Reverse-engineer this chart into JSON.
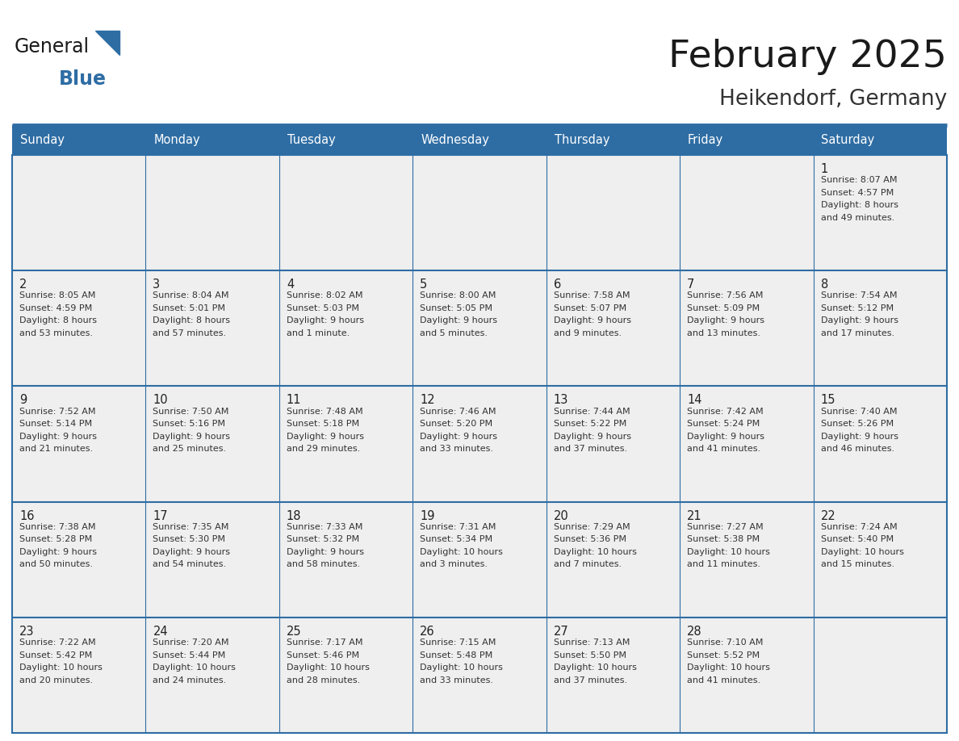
{
  "title": "February 2025",
  "subtitle": "Heikendorf, Germany",
  "header_bg": "#2E6DA4",
  "header_text_color": "#FFFFFF",
  "cell_bg": "#EFEFEF",
  "border_color": "#2E6DA4",
  "day_headers": [
    "Sunday",
    "Monday",
    "Tuesday",
    "Wednesday",
    "Thursday",
    "Friday",
    "Saturday"
  ],
  "days_data": [
    {
      "day": 1,
      "col": 6,
      "row": 0,
      "sunrise": "8:07 AM",
      "sunset": "4:57 PM",
      "daylight_line1": "Daylight: 8 hours",
      "daylight_line2": "and 49 minutes."
    },
    {
      "day": 2,
      "col": 0,
      "row": 1,
      "sunrise": "8:05 AM",
      "sunset": "4:59 PM",
      "daylight_line1": "Daylight: 8 hours",
      "daylight_line2": "and 53 minutes."
    },
    {
      "day": 3,
      "col": 1,
      "row": 1,
      "sunrise": "8:04 AM",
      "sunset": "5:01 PM",
      "daylight_line1": "Daylight: 8 hours",
      "daylight_line2": "and 57 minutes."
    },
    {
      "day": 4,
      "col": 2,
      "row": 1,
      "sunrise": "8:02 AM",
      "sunset": "5:03 PM",
      "daylight_line1": "Daylight: 9 hours",
      "daylight_line2": "and 1 minute."
    },
    {
      "day": 5,
      "col": 3,
      "row": 1,
      "sunrise": "8:00 AM",
      "sunset": "5:05 PM",
      "daylight_line1": "Daylight: 9 hours",
      "daylight_line2": "and 5 minutes."
    },
    {
      "day": 6,
      "col": 4,
      "row": 1,
      "sunrise": "7:58 AM",
      "sunset": "5:07 PM",
      "daylight_line1": "Daylight: 9 hours",
      "daylight_line2": "and 9 minutes."
    },
    {
      "day": 7,
      "col": 5,
      "row": 1,
      "sunrise": "7:56 AM",
      "sunset": "5:09 PM",
      "daylight_line1": "Daylight: 9 hours",
      "daylight_line2": "and 13 minutes."
    },
    {
      "day": 8,
      "col": 6,
      "row": 1,
      "sunrise": "7:54 AM",
      "sunset": "5:12 PM",
      "daylight_line1": "Daylight: 9 hours",
      "daylight_line2": "and 17 minutes."
    },
    {
      "day": 9,
      "col": 0,
      "row": 2,
      "sunrise": "7:52 AM",
      "sunset": "5:14 PM",
      "daylight_line1": "Daylight: 9 hours",
      "daylight_line2": "and 21 minutes."
    },
    {
      "day": 10,
      "col": 1,
      "row": 2,
      "sunrise": "7:50 AM",
      "sunset": "5:16 PM",
      "daylight_line1": "Daylight: 9 hours",
      "daylight_line2": "and 25 minutes."
    },
    {
      "day": 11,
      "col": 2,
      "row": 2,
      "sunrise": "7:48 AM",
      "sunset": "5:18 PM",
      "daylight_line1": "Daylight: 9 hours",
      "daylight_line2": "and 29 minutes."
    },
    {
      "day": 12,
      "col": 3,
      "row": 2,
      "sunrise": "7:46 AM",
      "sunset": "5:20 PM",
      "daylight_line1": "Daylight: 9 hours",
      "daylight_line2": "and 33 minutes."
    },
    {
      "day": 13,
      "col": 4,
      "row": 2,
      "sunrise": "7:44 AM",
      "sunset": "5:22 PM",
      "daylight_line1": "Daylight: 9 hours",
      "daylight_line2": "and 37 minutes."
    },
    {
      "day": 14,
      "col": 5,
      "row": 2,
      "sunrise": "7:42 AM",
      "sunset": "5:24 PM",
      "daylight_line1": "Daylight: 9 hours",
      "daylight_line2": "and 41 minutes."
    },
    {
      "day": 15,
      "col": 6,
      "row": 2,
      "sunrise": "7:40 AM",
      "sunset": "5:26 PM",
      "daylight_line1": "Daylight: 9 hours",
      "daylight_line2": "and 46 minutes."
    },
    {
      "day": 16,
      "col": 0,
      "row": 3,
      "sunrise": "7:38 AM",
      "sunset": "5:28 PM",
      "daylight_line1": "Daylight: 9 hours",
      "daylight_line2": "and 50 minutes."
    },
    {
      "day": 17,
      "col": 1,
      "row": 3,
      "sunrise": "7:35 AM",
      "sunset": "5:30 PM",
      "daylight_line1": "Daylight: 9 hours",
      "daylight_line2": "and 54 minutes."
    },
    {
      "day": 18,
      "col": 2,
      "row": 3,
      "sunrise": "7:33 AM",
      "sunset": "5:32 PM",
      "daylight_line1": "Daylight: 9 hours",
      "daylight_line2": "and 58 minutes."
    },
    {
      "day": 19,
      "col": 3,
      "row": 3,
      "sunrise": "7:31 AM",
      "sunset": "5:34 PM",
      "daylight_line1": "Daylight: 10 hours",
      "daylight_line2": "and 3 minutes."
    },
    {
      "day": 20,
      "col": 4,
      "row": 3,
      "sunrise": "7:29 AM",
      "sunset": "5:36 PM",
      "daylight_line1": "Daylight: 10 hours",
      "daylight_line2": "and 7 minutes."
    },
    {
      "day": 21,
      "col": 5,
      "row": 3,
      "sunrise": "7:27 AM",
      "sunset": "5:38 PM",
      "daylight_line1": "Daylight: 10 hours",
      "daylight_line2": "and 11 minutes."
    },
    {
      "day": 22,
      "col": 6,
      "row": 3,
      "sunrise": "7:24 AM",
      "sunset": "5:40 PM",
      "daylight_line1": "Daylight: 10 hours",
      "daylight_line2": "and 15 minutes."
    },
    {
      "day": 23,
      "col": 0,
      "row": 4,
      "sunrise": "7:22 AM",
      "sunset": "5:42 PM",
      "daylight_line1": "Daylight: 10 hours",
      "daylight_line2": "and 20 minutes."
    },
    {
      "day": 24,
      "col": 1,
      "row": 4,
      "sunrise": "7:20 AM",
      "sunset": "5:44 PM",
      "daylight_line1": "Daylight: 10 hours",
      "daylight_line2": "and 24 minutes."
    },
    {
      "day": 25,
      "col": 2,
      "row": 4,
      "sunrise": "7:17 AM",
      "sunset": "5:46 PM",
      "daylight_line1": "Daylight: 10 hours",
      "daylight_line2": "and 28 minutes."
    },
    {
      "day": 26,
      "col": 3,
      "row": 4,
      "sunrise": "7:15 AM",
      "sunset": "5:48 PM",
      "daylight_line1": "Daylight: 10 hours",
      "daylight_line2": "and 33 minutes."
    },
    {
      "day": 27,
      "col": 4,
      "row": 4,
      "sunrise": "7:13 AM",
      "sunset": "5:50 PM",
      "daylight_line1": "Daylight: 10 hours",
      "daylight_line2": "and 37 minutes."
    },
    {
      "day": 28,
      "col": 5,
      "row": 4,
      "sunrise": "7:10 AM",
      "sunset": "5:52 PM",
      "daylight_line1": "Daylight: 10 hours",
      "daylight_line2": "and 41 minutes."
    }
  ],
  "num_rows": 5,
  "num_cols": 7,
  "title_color": "#1a1a1a",
  "subtitle_color": "#333333",
  "cell_text_color": "#333333",
  "cell_day_color": "#222222",
  "divider_color": "#2E6DA4",
  "logo_color_general": "#1a1a1a",
  "logo_color_blue": "#2E6DA4",
  "logo_triangle_color": "#2E6DA4",
  "logo_text_general": "General",
  "logo_text_blue": "Blue"
}
